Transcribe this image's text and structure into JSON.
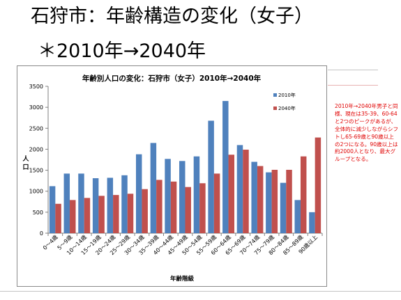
{
  "slide": {
    "title": "石狩市：年齢構造の変化（女子）",
    "subtitle": "＊2010年→2040年"
  },
  "note": "2010年→2040年男子と同様、現在は35-39、60-64と2つのピークがあるが、全体的に減少しながらシフトし65-69歳と90歳以上の2つになる。90歳以上は約2000人となり、最大グループとなる。",
  "chart_data": {
    "type": "bar",
    "title": "年齢別人口の変化：石狩市（女子）2010年→2040年",
    "xlabel": "年齢階級",
    "ylabel": "人口",
    "ylim": [
      0,
      3500
    ],
    "yticks": [
      0,
      500,
      1000,
      1500,
      2000,
      2500,
      3000,
      3500
    ],
    "grid": false,
    "legend_position": "top-right",
    "categories": [
      "0～4歳",
      "5～9歳",
      "10～14歳",
      "15～19歳",
      "20～24歳",
      "25～29歳",
      "30～34歳",
      "35～39歳",
      "40～44歳",
      "45～49歳",
      "50～54歳",
      "55～59歳",
      "60～64歳",
      "65～69歳",
      "70～74歳",
      "75～79歳",
      "80～84歳",
      "85～89歳",
      "90歳以上"
    ],
    "series": [
      {
        "name": "2010年",
        "color": "#4f81bd",
        "values": [
          1120,
          1420,
          1420,
          1310,
          1320,
          1380,
          1880,
          2150,
          1770,
          1720,
          1830,
          2680,
          3150,
          2100,
          1700,
          1450,
          1200,
          790,
          500
        ]
      },
      {
        "name": "2040年",
        "color": "#c0504d",
        "values": [
          700,
          790,
          840,
          890,
          910,
          940,
          1050,
          1270,
          1230,
          1100,
          1190,
          1420,
          1870,
          1990,
          1600,
          1510,
          1510,
          1830,
          2280
        ]
      }
    ]
  }
}
